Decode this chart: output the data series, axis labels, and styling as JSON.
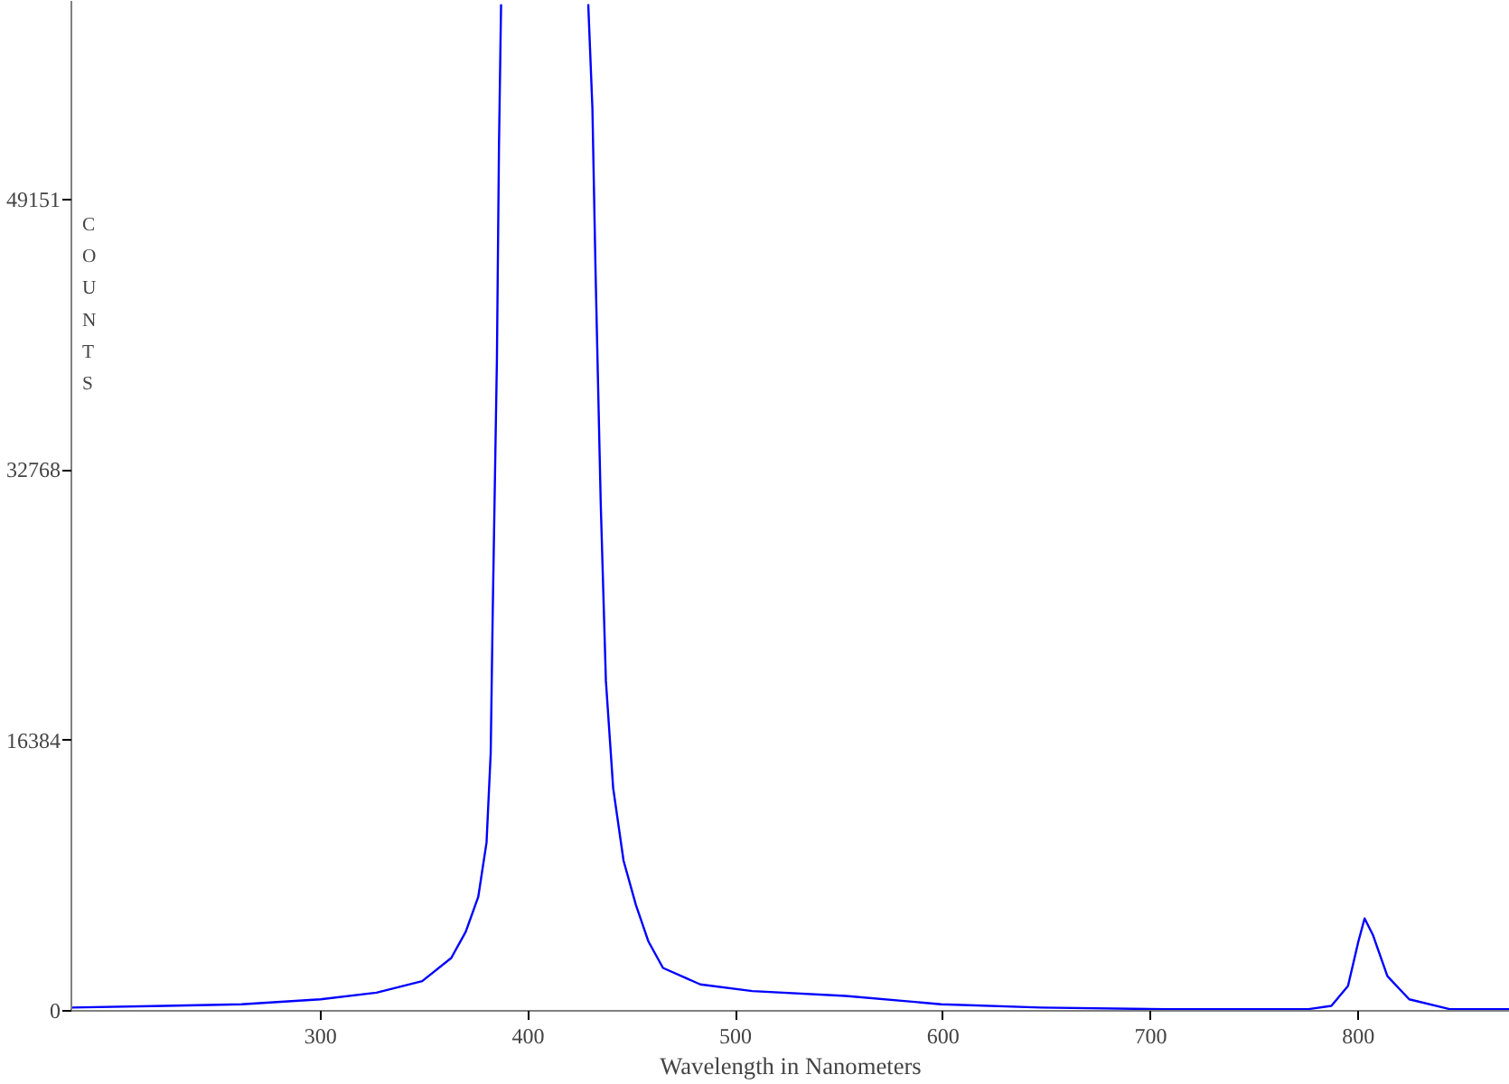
{
  "chart_data": {
    "type": "line",
    "xlabel": "Wavelength in Nanometers",
    "ylabel": "COUNTS",
    "x": [
      180,
      225,
      262,
      300,
      327,
      349,
      363,
      370,
      376,
      380,
      382,
      383,
      385,
      386,
      387,
      428,
      429,
      431,
      432.5,
      435,
      437.5,
      441,
      446,
      452,
      458,
      465,
      483,
      508,
      553,
      599,
      647,
      707,
      776,
      787,
      795,
      800,
      803,
      807,
      814,
      824.5,
      844,
      873
    ],
    "series": [
      {
        "color": "#0000ff",
        "values": [
          200,
          300,
          400,
          700,
          1100,
          1800,
          3200,
          4800,
          6900,
          10200,
          15600,
          24300,
          39500,
          52500,
          61000,
          null,
          61000,
          54700,
          44900,
          30800,
          20000,
          13500,
          9100,
          6400,
          4200,
          2600,
          1600,
          1200,
          900,
          400,
          200,
          100,
          100,
          300,
          1500,
          4200,
          5600,
          4600,
          2100,
          700,
          100,
          100
        ]
      }
    ],
    "xlim": [
      180,
      873
    ],
    "ylim": [
      0,
      61200
    ],
    "xticks": [
      300,
      400,
      500,
      600,
      700,
      800
    ],
    "yticks": [
      0,
      16384,
      32768,
      49151
    ],
    "grid": false,
    "marker": "none",
    "line_style": "solid"
  }
}
